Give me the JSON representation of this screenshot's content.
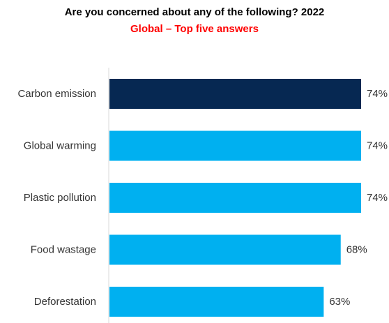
{
  "chart_data": {
    "type": "bar",
    "orientation": "horizontal",
    "title": "Are you concerned about any of the following? 2022",
    "subtitle": "Global – Top five answers",
    "categories": [
      "Carbon emission",
      "Global warming",
      "Plastic pollution",
      "Food wastage",
      "Deforestation"
    ],
    "values": [
      74,
      74,
      74,
      68,
      63
    ],
    "value_labels": [
      "74%",
      "74%",
      "74%",
      "68%",
      "63%"
    ],
    "unit": "%",
    "xlim": [
      0,
      74
    ],
    "highlight_index": 0,
    "colors": {
      "highlight": "#062852",
      "bar": "#00b0f0",
      "title": "#000000",
      "subtitle": "#ff0000",
      "axis": "#d9d9d9"
    },
    "grid": false,
    "legend": "none"
  }
}
